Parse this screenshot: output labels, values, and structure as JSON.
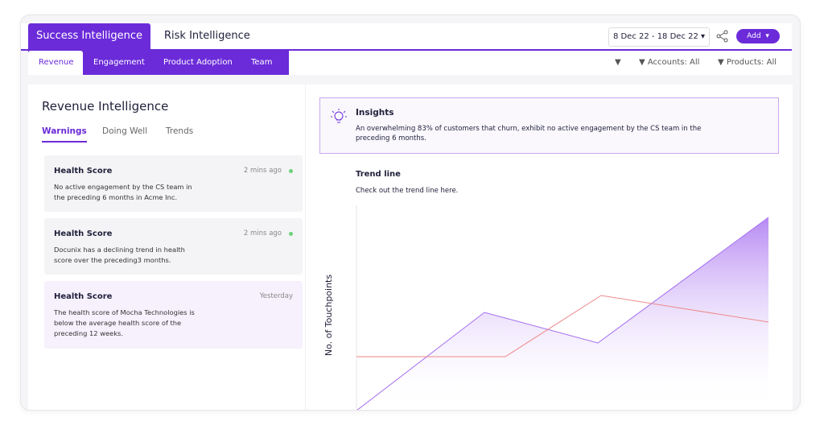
{
  "header": {
    "tabs": [
      "Success Intelligence",
      "Risk Intelligence"
    ],
    "date_range": "8 Dec 22 - 18 Dec 22",
    "add_button": "Add"
  },
  "subtabs": [
    "Revenue",
    "Engagement",
    "Product Adoption",
    "Team"
  ],
  "filters": {
    "accounts": "Accounts: All",
    "products": "Products: All"
  },
  "panel": {
    "title": "Revenue Intelligence",
    "tabs": [
      "Warnings",
      "Doing Well",
      "Trends"
    ]
  },
  "cards": [
    {
      "title": "Health Score",
      "time": "2 mins ago",
      "text": "No active engagement by the CS team in the preceding 6 months in Acme Inc."
    },
    {
      "title": "Health Score",
      "time": "2 mins ago",
      "text": "Docunix has a declining trend in health score over the preceding3 months."
    },
    {
      "title": "Health Score",
      "time": "Yesterday",
      "text": "The health score of Mocha Technologies is below  the average health score of the preceding 12 weeks."
    }
  ],
  "insights": {
    "title": "Insights",
    "text": "An overwhelming 83% of customers that churn, exhibit no active engagement by the CS team in the preceding 6 months."
  },
  "trend": {
    "title": "Trend line",
    "subtitle": "Check out the trend line here.",
    "y_label": "No. of Touchpoints"
  }
}
